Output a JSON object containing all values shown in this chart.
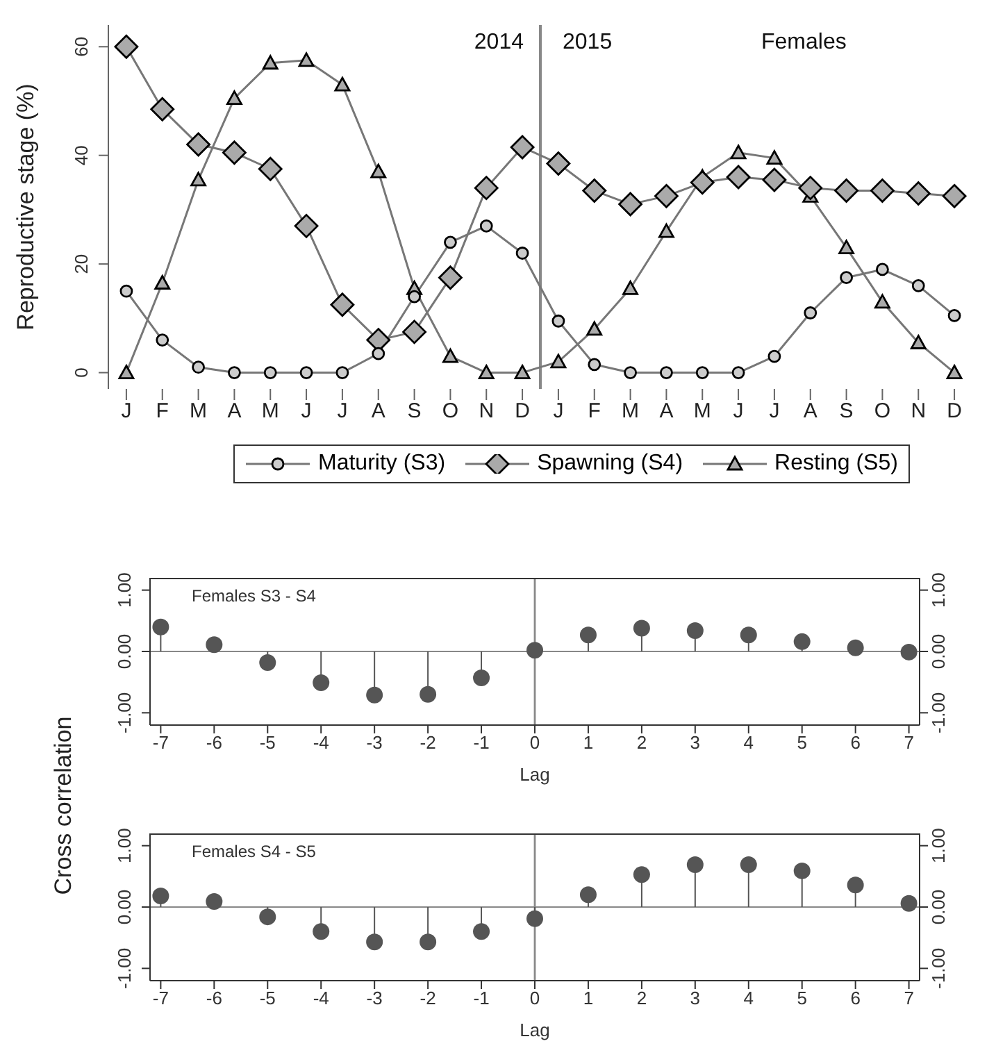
{
  "chart_data": [
    {
      "type": "line",
      "ylabel": "Reproductive stage (%)",
      "categories": [
        "J",
        "F",
        "M",
        "A",
        "M",
        "J",
        "J",
        "A",
        "S",
        "O",
        "N",
        "D",
        "J",
        "F",
        "M",
        "A",
        "M",
        "J",
        "J",
        "A",
        "S",
        "O",
        "N",
        "D"
      ],
      "ylim": [
        -3,
        64
      ],
      "yticks": [
        0,
        20,
        40,
        60
      ],
      "series": [
        {
          "name": "Maturity (S3)",
          "color": "#777777",
          "marker": "circle",
          "values": [
            15,
            6,
            1,
            0,
            0,
            0,
            0,
            3.5,
            14,
            24,
            27,
            22,
            9.5,
            1.5,
            0,
            0,
            0,
            0,
            3,
            11,
            17.5,
            19,
            16,
            10.5
          ]
        },
        {
          "name": "Spawning (S4)",
          "color": "#777777",
          "marker": "diamond",
          "values": [
            60,
            48.5,
            42,
            40.5,
            37.5,
            27,
            12.5,
            6,
            7.5,
            17.5,
            34,
            41.5,
            38.5,
            33.5,
            31,
            32.5,
            35,
            36,
            35.5,
            34,
            33.5,
            33.5,
            33,
            32.5
          ]
        },
        {
          "name": "Resting (S5)",
          "color": "#777777",
          "marker": "triangle",
          "values": [
            0,
            16.5,
            35.5,
            50.5,
            57,
            57.5,
            53,
            37,
            15.5,
            3,
            0,
            0,
            2,
            8,
            15.5,
            26,
            36,
            40.5,
            39.5,
            32.5,
            23,
            13,
            5.5,
            0
          ]
        }
      ],
      "annotations": [
        "2014",
        "2015",
        "Females"
      ],
      "legend": "bottom",
      "grid": false
    },
    {
      "type": "lollipop",
      "xlabel": "Lag",
      "ylabel": "Cross correlation",
      "x": [
        -7,
        -6,
        -5,
        -4,
        -3,
        -2,
        -1,
        0,
        1,
        2,
        3,
        4,
        5,
        6,
        7
      ],
      "values": [
        0.4,
        0.11,
        -0.18,
        -0.51,
        -0.71,
        -0.7,
        -0.43,
        0.02,
        0.27,
        0.38,
        0.34,
        0.27,
        0.16,
        0.06,
        -0.01
      ],
      "color": "#555555",
      "marker": "circle",
      "xlim": [
        -7.2,
        7.2
      ],
      "xticks": [
        -7,
        -6,
        -5,
        -4,
        -3,
        -2,
        -1,
        0,
        1,
        2,
        3,
        4,
        5,
        6,
        7
      ],
      "ylim": [
        -1.2,
        1.2
      ],
      "yticks": [
        {
          "value": -1,
          "label": "-1.00"
        },
        {
          "value": 0,
          "label": "0.00"
        },
        {
          "value": 1,
          "label": "1.00"
        }
      ],
      "y2lim": [
        -1.2,
        1.2
      ],
      "y2ticks": [
        {
          "value": -1,
          "label": "-1.00"
        },
        {
          "value": 0,
          "label": "0.00"
        },
        {
          "value": 1,
          "label": "1.00"
        }
      ],
      "ref_lines": [
        {
          "axis": "x",
          "value": 0,
          "color": "#888888"
        }
      ],
      "annotations": [
        "Females S3 - S4"
      ],
      "grid": false
    },
    {
      "type": "lollipop",
      "xlabel": "Lag",
      "x": [
        -7,
        -6,
        -5,
        -4,
        -3,
        -2,
        -1,
        0,
        1,
        2,
        3,
        4,
        5,
        6,
        7
      ],
      "values": [
        0.18,
        0.09,
        -0.16,
        -0.4,
        -0.57,
        -0.57,
        -0.4,
        -0.19,
        0.2,
        0.53,
        0.69,
        0.69,
        0.59,
        0.36,
        0.06
      ],
      "color": "#555555",
      "marker": "circle",
      "xlim": [
        -7.2,
        7.2
      ],
      "xticks": [
        -7,
        -6,
        -5,
        -4,
        -3,
        -2,
        -1,
        0,
        1,
        2,
        3,
        4,
        5,
        6,
        7
      ],
      "ylim": [
        -1.2,
        1.2
      ],
      "yticks": [
        {
          "value": -1,
          "label": "-1.00"
        },
        {
          "value": 0,
          "label": "0.00"
        },
        {
          "value": 1,
          "label": "1.00"
        }
      ],
      "y2lim": [
        -1.2,
        1.2
      ],
      "y2ticks": [
        {
          "value": -1,
          "label": "-1.00"
        },
        {
          "value": 0,
          "label": "0.00"
        },
        {
          "value": 1,
          "label": "1.00"
        }
      ],
      "ref_lines": [
        {
          "axis": "x",
          "value": 0,
          "color": "#888888"
        }
      ],
      "annotations": [
        "Females S4 - S5"
      ],
      "grid": false
    }
  ]
}
